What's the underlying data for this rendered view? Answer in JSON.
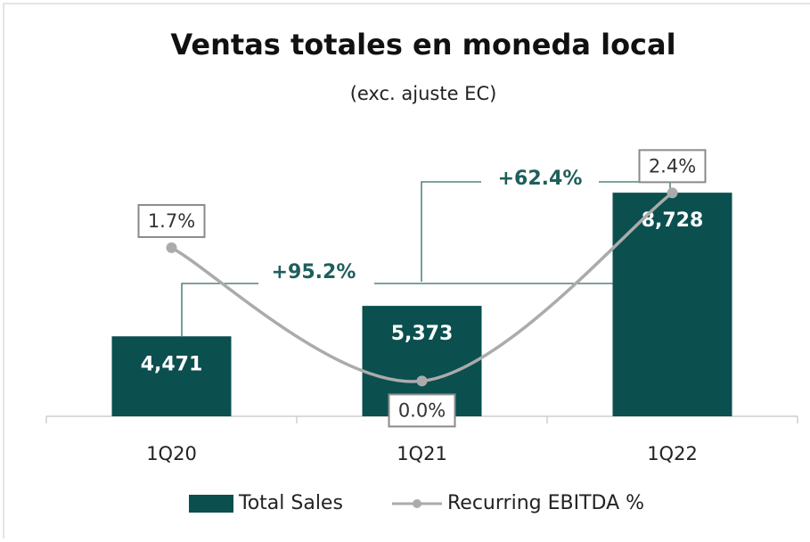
{
  "chart_data": {
    "type": "bar",
    "title": "Ventas totales en moneda local",
    "subtitle": "(exc. ajuste EC)",
    "categories": [
      "1Q20",
      "1Q21",
      "1Q22"
    ],
    "series": [
      {
        "name": "Total Sales",
        "type": "bar",
        "color": "#0b4f4f",
        "values": [
          4471,
          5373,
          8728
        ],
        "value_labels": [
          "4,471",
          "5,373",
          "8,728"
        ]
      },
      {
        "name": "Recurring EBITDA %",
        "type": "line",
        "axis": "y2",
        "color": "#ababab",
        "values": [
          1.7,
          0.0,
          2.4
        ],
        "value_labels": [
          "1.7%",
          "0.0%",
          "2.4%"
        ]
      }
    ],
    "ylim": [
      2100,
      10000
    ],
    "y2lim": [
      -0.45,
      2.95
    ],
    "annotations": [
      "+95.2%",
      "+62.4%"
    ],
    "legend": "bottom"
  }
}
